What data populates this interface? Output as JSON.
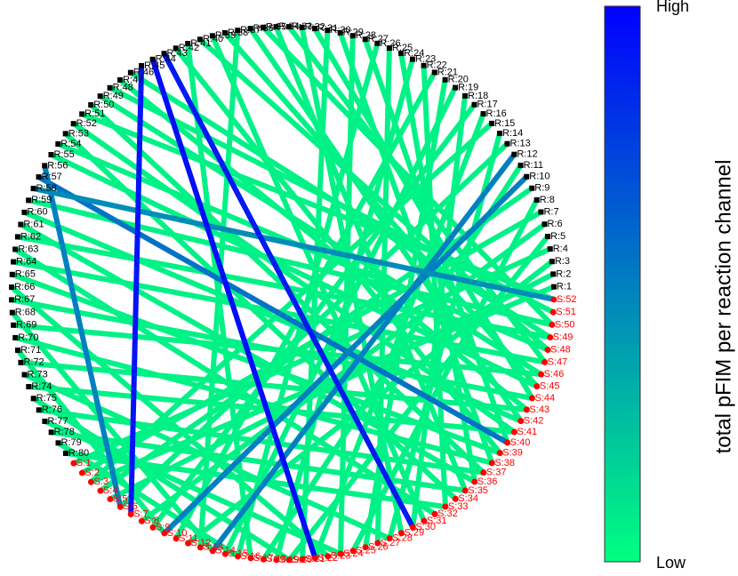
{
  "chart_data": {
    "type": "network",
    "colorbar_label": "total pFIM per reaction channel",
    "colorbar_high": "High",
    "colorbar_low": "Low",
    "colormap": [
      "#00ff80",
      "#0000ff"
    ],
    "reaction_color": "#000000",
    "species_color": "#ff0000",
    "reactions": [
      "R:1",
      "R:2",
      "R:3",
      "R:4",
      "R:5",
      "R:6",
      "R:7",
      "R:8",
      "R:9",
      "R:10",
      "R:11",
      "R:12",
      "R:13",
      "R:14",
      "R:15",
      "R:16",
      "R:17",
      "R:18",
      "R:19",
      "R:20",
      "R:21",
      "R:22",
      "R:23",
      "R:24",
      "R:25",
      "R:26",
      "R:27",
      "R:28",
      "R:29",
      "R:30",
      "R:31",
      "R:32",
      "R:33",
      "R:34",
      "R:35",
      "R:36",
      "R:37",
      "R:38",
      "R:39",
      "R:40",
      "R:41",
      "R:42",
      "R:43",
      "R:44",
      "R:45",
      "R:46",
      "R:47",
      "R:48",
      "R:49",
      "R:50",
      "R:51",
      "R:52",
      "R:53",
      "R:54",
      "R:55",
      "R:56",
      "R:57",
      "R:58",
      "R:59",
      "R:60",
      "R:61",
      "R:62",
      "R:63",
      "R:64",
      "R:65",
      "R:66",
      "R:67",
      "R:68",
      "R:69",
      "R:70",
      "R:71",
      "R:72",
      "R:73",
      "R:74",
      "R:75",
      "R:76",
      "R:77",
      "R:78",
      "R:79",
      "R:80"
    ],
    "species": [
      "S:1",
      "S:2",
      "S:3",
      "S:4",
      "S:5",
      "S:6",
      "S:7",
      "S:8",
      "S:9",
      "S:10",
      "S:11",
      "S:12",
      "S:13",
      "S:14",
      "S:15",
      "S:16",
      "S:17",
      "S:18",
      "S:19",
      "S:20",
      "S:21",
      "S:22",
      "S:23",
      "S:24",
      "S:25",
      "S:26",
      "S:27",
      "S:28",
      "S:29",
      "S:30",
      "S:31",
      "S:32",
      "S:33",
      "S:34",
      "S:35",
      "S:36",
      "S:37",
      "S:38",
      "S:39",
      "S:40",
      "S:41",
      "S:42",
      "S:43",
      "S:44",
      "S:45",
      "S:46",
      "S:47",
      "S:48",
      "S:49",
      "S:50",
      "S:51",
      "S:52"
    ],
    "edges": [
      {
        "r": 1,
        "s": 3,
        "level": 0.05
      },
      {
        "r": 2,
        "s": 5,
        "level": 0.05
      },
      {
        "r": 3,
        "s": 12,
        "level": 0.05
      },
      {
        "r": 4,
        "s": 1,
        "level": 0.05
      },
      {
        "r": 5,
        "s": 20,
        "level": 0.05
      },
      {
        "r": 6,
        "s": 8,
        "level": 0.05
      },
      {
        "r": 7,
        "s": 2,
        "level": 0.05
      },
      {
        "r": 8,
        "s": 25,
        "level": 0.05
      },
      {
        "r": 9,
        "s": 4,
        "level": 0.05
      },
      {
        "r": 11,
        "s": 18,
        "level": 0.05
      },
      {
        "r": 13,
        "s": 6,
        "level": 0.05
      },
      {
        "r": 14,
        "s": 28,
        "level": 0.05
      },
      {
        "r": 15,
        "s": 3,
        "level": 0.05
      },
      {
        "r": 16,
        "s": 22,
        "level": 0.05
      },
      {
        "r": 17,
        "s": 9,
        "level": 0.05
      },
      {
        "r": 18,
        "s": 30,
        "level": 0.05
      },
      {
        "r": 19,
        "s": 15,
        "level": 0.05
      },
      {
        "r": 20,
        "s": 26,
        "level": 0.05
      },
      {
        "r": 21,
        "s": 11,
        "level": 0.05
      },
      {
        "r": 22,
        "s": 33,
        "level": 0.05
      },
      {
        "r": 23,
        "s": 19,
        "level": 0.05
      },
      {
        "r": 24,
        "s": 36,
        "level": 0.05
      },
      {
        "r": 25,
        "s": 27,
        "level": 0.05
      },
      {
        "r": 26,
        "s": 16,
        "level": 0.05
      },
      {
        "r": 27,
        "s": 40,
        "level": 0.05
      },
      {
        "r": 28,
        "s": 24,
        "level": 0.05
      },
      {
        "r": 29,
        "s": 38,
        "level": 0.05
      },
      {
        "r": 30,
        "s": 21,
        "level": 0.05
      },
      {
        "r": 31,
        "s": 44,
        "level": 0.05
      },
      {
        "r": 32,
        "s": 29,
        "level": 0.05
      },
      {
        "r": 33,
        "s": 47,
        "level": 0.05
      },
      {
        "r": 34,
        "s": 35,
        "level": 0.05
      },
      {
        "r": 35,
        "s": 50,
        "level": 0.05
      },
      {
        "r": 36,
        "s": 42,
        "level": 0.05
      },
      {
        "r": 37,
        "s": 13,
        "level": 0.05
      },
      {
        "r": 38,
        "s": 45,
        "level": 0.05
      },
      {
        "r": 39,
        "s": 31,
        "level": 0.05
      },
      {
        "r": 40,
        "s": 48,
        "level": 0.05
      },
      {
        "r": 41,
        "s": 17,
        "level": 0.05
      },
      {
        "r": 42,
        "s": 39,
        "level": 0.05
      },
      {
        "r": 46,
        "s": 49,
        "level": 0.05
      },
      {
        "r": 47,
        "s": 43,
        "level": 0.05
      },
      {
        "r": 48,
        "s": 51,
        "level": 0.05
      },
      {
        "r": 49,
        "s": 46,
        "level": 0.05
      },
      {
        "r": 50,
        "s": 37,
        "level": 0.05
      },
      {
        "r": 51,
        "s": 52,
        "level": 0.05
      },
      {
        "r": 52,
        "s": 41,
        "level": 0.05
      },
      {
        "r": 53,
        "s": 34,
        "level": 0.05
      },
      {
        "r": 54,
        "s": 48,
        "level": 0.05
      },
      {
        "r": 55,
        "s": 45,
        "level": 0.05
      },
      {
        "r": 59,
        "s": 50,
        "level": 0.05
      },
      {
        "r": 60,
        "s": 42,
        "level": 0.05
      },
      {
        "r": 61,
        "s": 36,
        "level": 0.05
      },
      {
        "r": 62,
        "s": 49,
        "level": 0.05
      },
      {
        "r": 63,
        "s": 32,
        "level": 0.05
      },
      {
        "r": 64,
        "s": 47,
        "level": 0.05
      },
      {
        "r": 65,
        "s": 39,
        "level": 0.05
      },
      {
        "r": 66,
        "s": 23,
        "level": 0.05
      },
      {
        "r": 67,
        "s": 44,
        "level": 0.05
      },
      {
        "r": 68,
        "s": 14,
        "level": 0.05
      },
      {
        "r": 69,
        "s": 46,
        "level": 0.05
      },
      {
        "r": 70,
        "s": 38,
        "level": 0.05
      },
      {
        "r": 71,
        "s": 10,
        "level": 0.05
      },
      {
        "r": 72,
        "s": 43,
        "level": 0.05
      },
      {
        "r": 73,
        "s": 28,
        "level": 0.05
      },
      {
        "r": 74,
        "s": 41,
        "level": 0.05
      },
      {
        "r": 75,
        "s": 20,
        "level": 0.05
      },
      {
        "r": 76,
        "s": 37,
        "level": 0.05
      },
      {
        "r": 77,
        "s": 24,
        "level": 0.05
      },
      {
        "r": 78,
        "s": 35,
        "level": 0.05
      },
      {
        "r": 79,
        "s": 16,
        "level": 0.05
      },
      {
        "r": 80,
        "s": 33,
        "level": 0.05
      },
      {
        "r": 57,
        "s": 40,
        "level": 0.55
      },
      {
        "r": 12,
        "s": 14,
        "level": 0.5
      },
      {
        "r": 10,
        "s": 10,
        "level": 0.5
      },
      {
        "r": 56,
        "s": 6,
        "level": 0.5
      },
      {
        "r": 58,
        "s": 52,
        "level": 0.45
      },
      {
        "r": 45,
        "s": 7,
        "level": 0.92
      },
      {
        "r": 44,
        "s": 22,
        "level": 0.95
      },
      {
        "r": 43,
        "s": 30,
        "level": 0.9
      }
    ]
  }
}
